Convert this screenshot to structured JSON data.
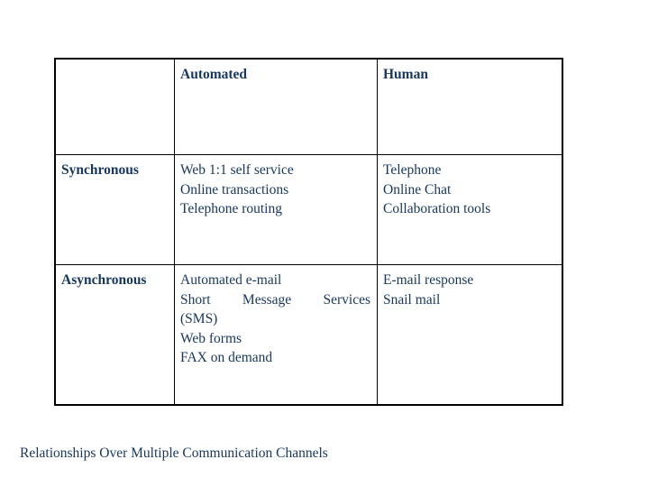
{
  "slide": {
    "caption": "Relationships Over Multiple Communication Channels"
  },
  "colors": {
    "text_navy": "#17375E",
    "border_black": "#000000",
    "background_white": "#FFFFFF"
  },
  "table": {
    "col_headers": {
      "automated": "Automated",
      "human": "Human"
    },
    "row_headers": {
      "synchronous": "Synchronous",
      "asynchronous": "Asynchronous"
    },
    "cells": {
      "synchronous_automated": [
        "Web 1:1 self service",
        "Online transactions",
        "Telephone routing"
      ],
      "synchronous_human": [
        "Telephone",
        "Online Chat",
        "Collaboration tools"
      ],
      "asynchronous_automated": [
        "Automated e-mail",
        "Short Message Services",
        "(SMS)",
        "Web forms",
        "FAX on demand"
      ],
      "asynchronous_human": [
        "E-mail response",
        "Snail mail"
      ]
    }
  }
}
